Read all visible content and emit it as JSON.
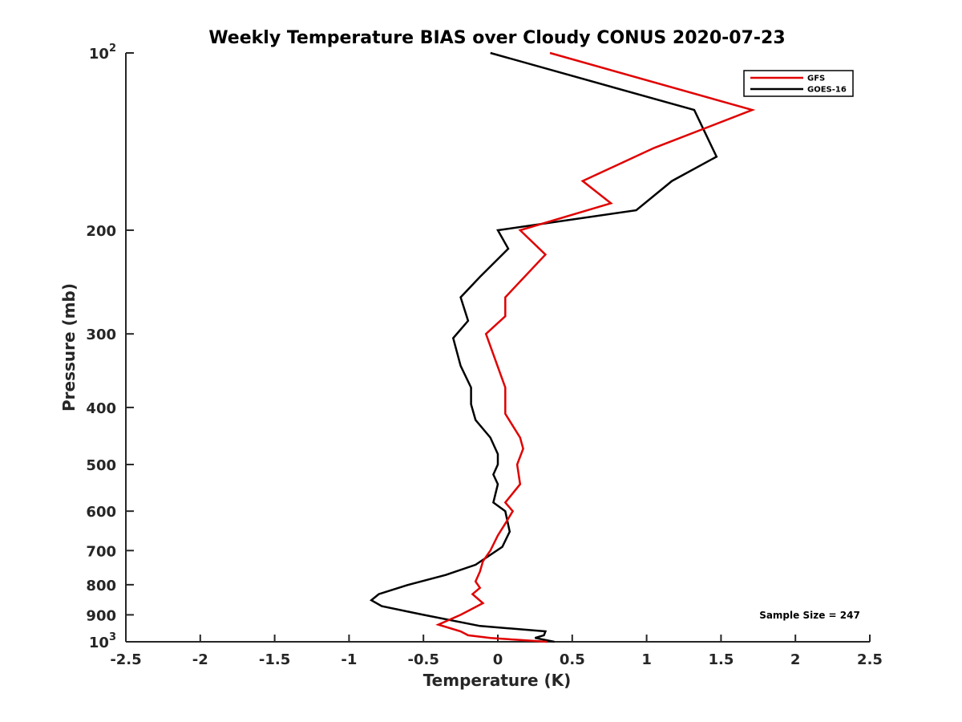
{
  "chart_data": {
    "type": "line",
    "title": "Weekly Temperature BIAS over Cloudy CONUS 2020-07-23",
    "xlabel": "Temperature (K)",
    "ylabel": "Pressure (mb)",
    "xlim": [
      -2.5,
      2.5
    ],
    "ylim": [
      1000,
      100
    ],
    "yscale": "log",
    "y_reversed": true,
    "grid": false,
    "legend_position": "top-right",
    "x_ticks": [
      "-2.5",
      "-2",
      "-1.5",
      "-1",
      "-0.5",
      "0",
      "0.5",
      "1",
      "1.5",
      "2",
      "2.5"
    ],
    "y_tick_labels": [
      {
        "value": 100,
        "base": "10",
        "exp": "2"
      },
      {
        "value": 200,
        "label": "200"
      },
      {
        "value": 300,
        "label": "300"
      },
      {
        "value": 400,
        "label": "400"
      },
      {
        "value": 500,
        "label": "500"
      },
      {
        "value": 600,
        "label": "600"
      },
      {
        "value": 700,
        "label": "700"
      },
      {
        "value": 800,
        "label": "800"
      },
      {
        "value": 900,
        "label": "900"
      },
      {
        "value": 1000,
        "base": "10",
        "exp": "3"
      }
    ],
    "series": [
      {
        "name": "GFS",
        "color": "#e00000",
        "points": [
          [
            0.35,
            100
          ],
          [
            1.71,
            125
          ],
          [
            1.05,
            145
          ],
          [
            0.57,
            165
          ],
          [
            0.76,
            180
          ],
          [
            0.15,
            200
          ],
          [
            0.32,
            220
          ],
          [
            0.05,
            260
          ],
          [
            0.05,
            280
          ],
          [
            -0.08,
            300
          ],
          [
            0.05,
            370
          ],
          [
            0.05,
            390
          ],
          [
            0.05,
            410
          ],
          [
            0.15,
            450
          ],
          [
            0.17,
            470
          ],
          [
            0.13,
            500
          ],
          [
            0.15,
            540
          ],
          [
            0.05,
            580
          ],
          [
            0.1,
            600
          ],
          [
            0.05,
            630
          ],
          [
            0.0,
            660
          ],
          [
            -0.05,
            700
          ],
          [
            -0.1,
            730
          ],
          [
            -0.12,
            760
          ],
          [
            -0.15,
            790
          ],
          [
            -0.12,
            810
          ],
          [
            -0.17,
            830
          ],
          [
            -0.1,
            860
          ],
          [
            -0.25,
            900
          ],
          [
            -0.4,
            935
          ],
          [
            -0.25,
            960
          ],
          [
            -0.2,
            975
          ],
          [
            -0.05,
            985
          ],
          [
            0.15,
            993
          ],
          [
            0.33,
            1000
          ]
        ]
      },
      {
        "name": "GOES-16",
        "color": "#000000",
        "points": [
          [
            -0.05,
            100
          ],
          [
            1.32,
            125
          ],
          [
            1.47,
            150
          ],
          [
            1.17,
            165
          ],
          [
            0.93,
            185
          ],
          [
            0.0,
            200
          ],
          [
            0.07,
            215
          ],
          [
            -0.12,
            240
          ],
          [
            -0.25,
            260
          ],
          [
            -0.2,
            285
          ],
          [
            -0.3,
            305
          ],
          [
            -0.25,
            340
          ],
          [
            -0.18,
            370
          ],
          [
            -0.18,
            395
          ],
          [
            -0.15,
            420
          ],
          [
            -0.05,
            450
          ],
          [
            0.0,
            480
          ],
          [
            0.0,
            500
          ],
          [
            -0.03,
            520
          ],
          [
            0.0,
            540
          ],
          [
            -0.03,
            580
          ],
          [
            0.05,
            600
          ],
          [
            0.08,
            650
          ],
          [
            0.03,
            690
          ],
          [
            -0.15,
            740
          ],
          [
            -0.35,
            770
          ],
          [
            -0.6,
            800
          ],
          [
            -0.8,
            830
          ],
          [
            -0.85,
            850
          ],
          [
            -0.78,
            870
          ],
          [
            -0.5,
            900
          ],
          [
            -0.12,
            940
          ],
          [
            0.32,
            960
          ],
          [
            0.31,
            975
          ],
          [
            0.25,
            985
          ],
          [
            0.38,
            1000
          ]
        ]
      }
    ],
    "annotation": "Sample Size = 247"
  }
}
